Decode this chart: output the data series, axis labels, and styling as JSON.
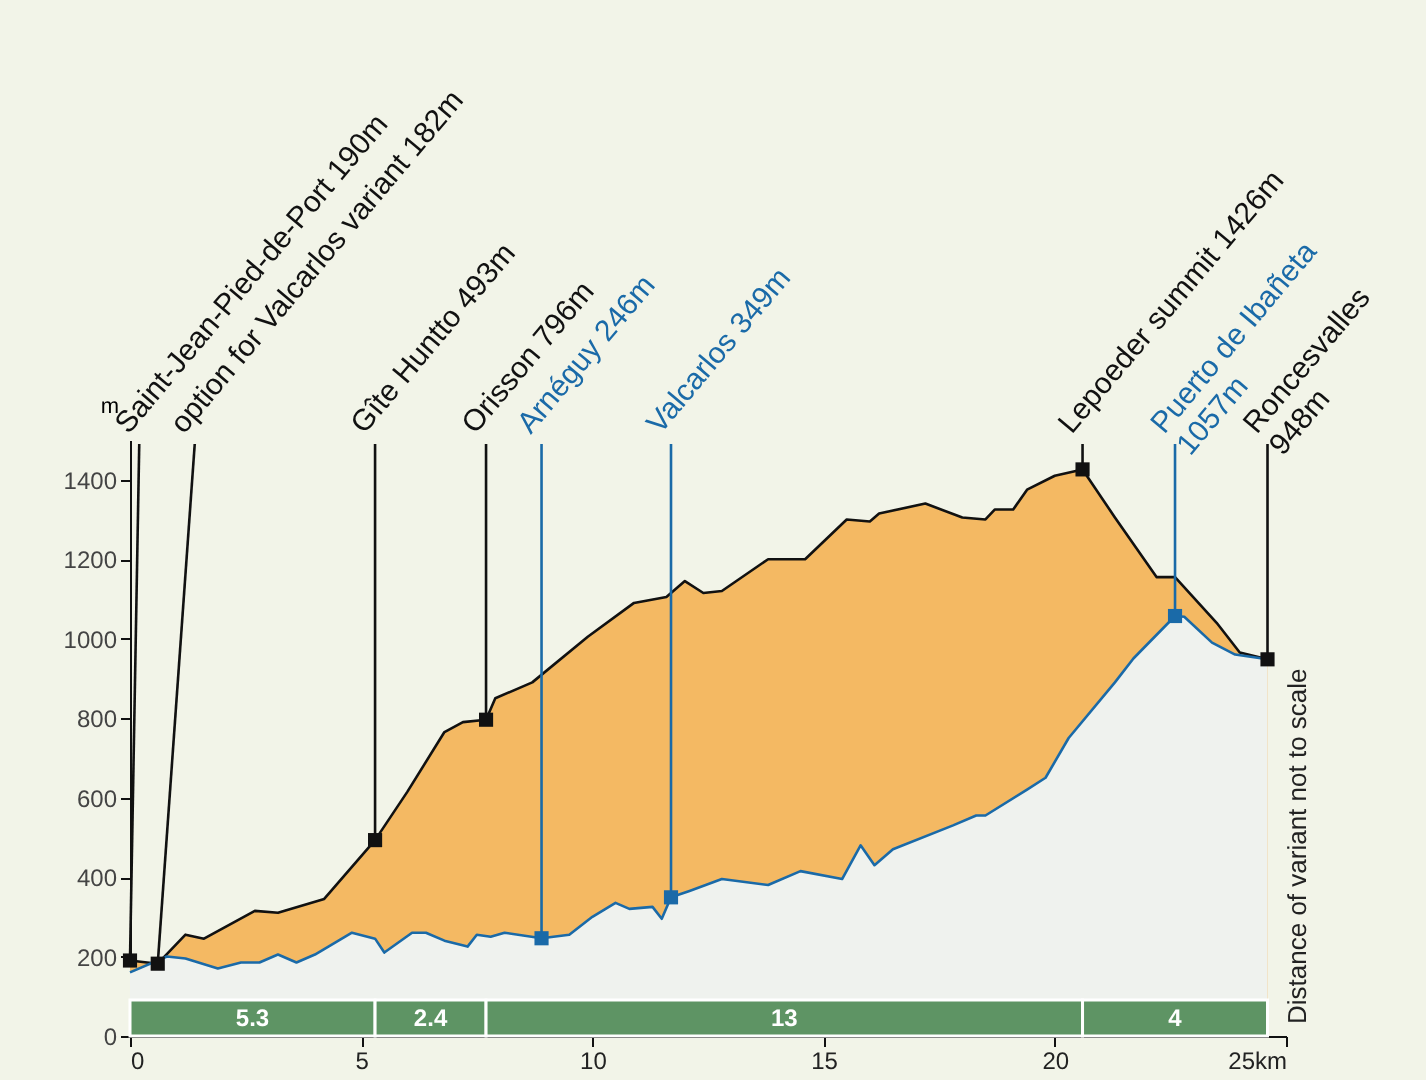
{
  "chart_data": {
    "type": "area",
    "ylabel": "m",
    "xlim": [
      0,
      25
    ],
    "xticks": [
      0,
      5,
      10,
      15,
      20,
      {
        "value": 25,
        "label": "25km"
      }
    ],
    "ylim": [
      0,
      1500
    ],
    "yticks": [
      0,
      200,
      400,
      600,
      800,
      1000,
      1200,
      1400
    ],
    "grid": false,
    "series": [
      {
        "color": "#f4b963",
        "x": [
          0,
          0.6,
          1.2,
          1.6,
          2.7,
          3.2,
          4.2,
          5.3,
          6.0,
          6.8,
          7.2,
          7.7,
          7.9,
          8.7,
          9.9,
          10.9,
          11.6,
          12.0,
          12.4,
          12.8,
          13.8,
          14.6,
          15.5,
          16.0,
          16.2,
          17.2,
          18.0,
          18.5,
          18.7,
          19.1,
          19.4,
          20.0,
          20.6,
          21.3,
          22.2,
          22.6,
          23.5,
          24.0,
          24.6
        ],
        "values": [
          190,
          182,
          255,
          245,
          315,
          310,
          345,
          493,
          615,
          765,
          790,
          796,
          850,
          890,
          1005,
          1090,
          1105,
          1145,
          1115,
          1120,
          1200,
          1200,
          1300,
          1295,
          1315,
          1340,
          1305,
          1300,
          1325,
          1325,
          1375,
          1410,
          1426,
          1305,
          1155,
          1155,
          1040,
          965,
          948
        ]
      },
      {
        "color": "#eff2ee",
        "x": [
          0,
          0.8,
          1.2,
          1.9,
          2.4,
          2.8,
          3.2,
          3.6,
          4.0,
          4.8,
          5.3,
          5.5,
          6.1,
          6.4,
          6.8,
          7.3,
          7.5,
          7.8,
          8.1,
          8.9,
          9.5,
          10.0,
          10.5,
          10.8,
          11.3,
          11.5,
          11.7,
          12.1,
          12.8,
          13.8,
          14.5,
          15.4,
          15.8,
          16.1,
          16.5,
          17.8,
          18.3,
          18.5,
          19.4,
          19.8,
          20.3,
          21.3,
          21.7,
          22.6,
          22.8,
          23.4,
          23.9,
          24.6
        ],
        "values": [
          160,
          200,
          195,
          170,
          185,
          185,
          205,
          185,
          205,
          260,
          245,
          210,
          260,
          260,
          240,
          225,
          255,
          250,
          260,
          246,
          255,
          300,
          335,
          320,
          325,
          295,
          349,
          365,
          395,
          380,
          415,
          395,
          480,
          430,
          470,
          530,
          555,
          555,
          620,
          650,
          750,
          890,
          950,
          1057,
          1055,
          990,
          960,
          948
        ]
      },
      {
        "type": "scatter",
        "marker": "square",
        "x": [
          0,
          0.6,
          5.3,
          7.7,
          8.9,
          11.7,
          20.6,
          22.6,
          24.6
        ],
        "values": [
          190,
          182,
          493,
          796,
          246,
          349,
          1426,
          1057,
          948
        ],
        "colors": [
          "#111111",
          "#111111",
          "#111111",
          "#111111",
          "#1a6aa8",
          "#1a6aa8",
          "#111111",
          "#1a6aa8",
          "#111111"
        ]
      }
    ],
    "annotations": [
      {
        "text": "Saint-Jean-Pied-de-Port 190m",
        "x": 0,
        "y": 190
      },
      {
        "text": "option for Valcarlos variant 182m",
        "x": 0.6,
        "y": 182
      },
      {
        "text": "Gîte Huntto 493m",
        "x": 5.3,
        "y": 493
      },
      {
        "text": "Orisson 796m",
        "x": 7.7,
        "y": 796
      },
      {
        "text": "Arnéguy 246m",
        "x": 8.9,
        "y": 246
      },
      {
        "text": "Valcarlos 349m",
        "x": 11.7,
        "y": 349
      },
      {
        "text": "Lepoeder summit 1426m",
        "x": 20.6,
        "y": 1426
      },
      {
        "text": "Puerto de Ibañeta\n1057m",
        "x": 22.6,
        "y": 1057
      },
      {
        "text": "Roncesvalles\n948m",
        "x": 24.6,
        "y": 948
      },
      "Distance of variant not to scale"
    ],
    "bands": [
      {
        "axis": "x",
        "from": 0,
        "to": 5.3,
        "label": "5.3",
        "color": "#5e9464"
      },
      {
        "axis": "x",
        "from": 5.3,
        "to": 7.7,
        "label": "2.4",
        "color": "#5e9464"
      },
      {
        "axis": "x",
        "from": 7.7,
        "to": 20.6,
        "label": "13",
        "color": "#5e9464"
      },
      {
        "axis": "x",
        "from": 20.6,
        "to": 24.6,
        "label": "4",
        "color": "#5e9464"
      }
    ]
  }
}
